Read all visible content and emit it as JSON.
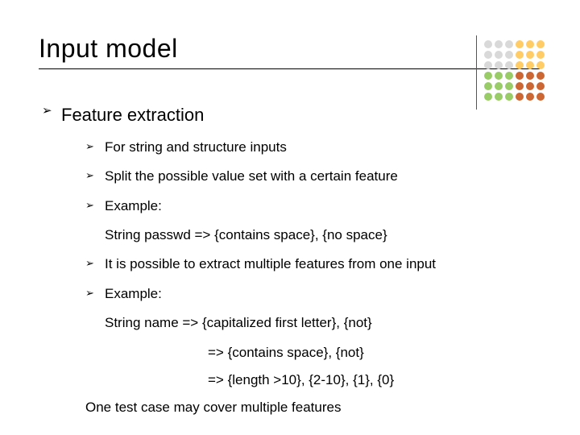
{
  "title": "Input model",
  "heading": "Feature extraction",
  "bullets": {
    "b1": "For string and structure inputs",
    "b2": "Split the possible value set with a certain feature",
    "b3": "Example:",
    "ex1": "String passwd => {contains space}, {no space}",
    "b4": "It is possible to extract multiple features from one input",
    "b5": "Example:",
    "ex2a": "String name => {capitalized first letter}, {not}",
    "ex2b": "=> {contains space}, {not}",
    "ex2c": "=> {length >10}, {2-10}, {1}, {0}",
    "final": "One test case may cover multiple features"
  },
  "decoration": {
    "dot_colors": [
      "#d9d9d9",
      "#d9d9d9",
      "#d9d9d9",
      "#ffcc66",
      "#ffcc66",
      "#ffcc66",
      "#d9d9d9",
      "#d9d9d9",
      "#d9d9d9",
      "#ffcc66",
      "#ffcc66",
      "#ffcc66",
      "#d9d9d9",
      "#d9d9d9",
      "#d9d9d9",
      "#ffcc66",
      "#ffcc66",
      "#ffcc66",
      "#99cc66",
      "#99cc66",
      "#99cc66",
      "#cc6633",
      "#cc6633",
      "#cc6633",
      "#99cc66",
      "#99cc66",
      "#99cc66",
      "#cc6633",
      "#cc6633",
      "#cc6633",
      "#99cc66",
      "#99cc66",
      "#99cc66",
      "#cc6633",
      "#cc6633",
      "#cc6633"
    ]
  },
  "style": {
    "background": "#ffffff",
    "text_color": "#000000",
    "title_fontsize": 32,
    "heading_fontsize": 22,
    "body_fontsize": 17,
    "font_family": "Comic Sans MS"
  }
}
